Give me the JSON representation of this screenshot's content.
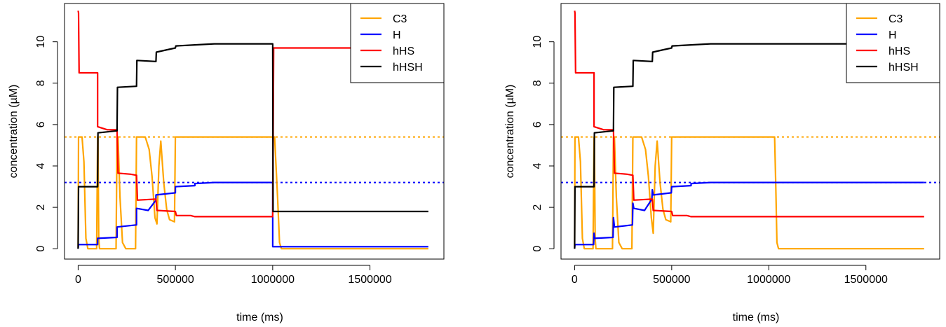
{
  "chart_data": [
    {
      "type": "line",
      "xlabel": "time (ms)",
      "ylabel": "concentration (µM)",
      "xlim": [
        -70000,
        1880000
      ],
      "ylim": [
        -0.5,
        11.85
      ],
      "xticks": [
        0,
        500000,
        1000000,
        1500000
      ],
      "xtick_labels": [
        "0",
        "500000",
        "1000000",
        "1500000"
      ],
      "yticks": [
        0,
        2,
        4,
        6,
        8,
        10
      ],
      "ytick_labels": [
        "0",
        "2",
        "4",
        "6",
        "8",
        "10"
      ],
      "legend_position": "top-right",
      "reference_lines": [
        {
          "series": "C3",
          "y": 5.4,
          "style": "dotted",
          "color": "#FFA500"
        },
        {
          "series": "H",
          "y": 3.2,
          "style": "dotted",
          "color": "#0000FF"
        }
      ],
      "series": [
        {
          "name": "C3",
          "color": "#FFA500",
          "points": [
            [
              0,
              0
            ],
            [
              2000,
              5.4
            ],
            [
              20000,
              5.4
            ],
            [
              30000,
              4.2
            ],
            [
              40000,
              0.5
            ],
            [
              50000,
              0
            ],
            [
              95000,
              0
            ],
            [
              100000,
              5.4
            ],
            [
              102000,
              5.4
            ],
            [
              106000,
              0.5
            ],
            [
              110000,
              0
            ],
            [
              195000,
              0
            ],
            [
              200000,
              5.4
            ],
            [
              205000,
              5.4
            ],
            [
              215000,
              2.5
            ],
            [
              228000,
              0.3
            ],
            [
              245000,
              0
            ],
            [
              295000,
              0
            ],
            [
              300000,
              5.4
            ],
            [
              345000,
              5.4
            ],
            [
              365000,
              4.8
            ],
            [
              380000,
              3.5
            ],
            [
              395000,
              1.5
            ],
            [
              405000,
              1.2
            ],
            [
              415000,
              4.0
            ],
            [
              425000,
              5.2
            ],
            [
              440000,
              3.2
            ],
            [
              455000,
              1.9
            ],
            [
              470000,
              1.4
            ],
            [
              495000,
              1.3
            ],
            [
              500000,
              5.4
            ],
            [
              1000000,
              5.4
            ],
            [
              1010000,
              5.4
            ],
            [
              1025000,
              2.5
            ],
            [
              1035000,
              0.3
            ],
            [
              1045000,
              0
            ],
            [
              1800000,
              0
            ]
          ]
        },
        {
          "name": "H",
          "color": "#0000FF",
          "points": [
            [
              0,
              0
            ],
            [
              2000,
              0.2
            ],
            [
              100000,
              0.2
            ],
            [
              100000,
              0.5
            ],
            [
              200000,
              0.55
            ],
            [
              200000,
              1.05
            ],
            [
              300000,
              1.15
            ],
            [
              300000,
              1.95
            ],
            [
              360000,
              1.85
            ],
            [
              400000,
              2.35
            ],
            [
              400000,
              2.6
            ],
            [
              500000,
              2.7
            ],
            [
              500000,
              3.0
            ],
            [
              600000,
              3.05
            ],
            [
              600000,
              3.15
            ],
            [
              700000,
              3.2
            ],
            [
              1000000,
              3.2
            ],
            [
              1000000,
              0.1
            ],
            [
              1800000,
              0.1
            ]
          ]
        },
        {
          "name": "hHS",
          "color": "#FF0000",
          "points": [
            [
              0,
              11.5
            ],
            [
              2000,
              11.4
            ],
            [
              5000,
              8.5
            ],
            [
              100000,
              8.5
            ],
            [
              100000,
              5.9
            ],
            [
              150000,
              5.75
            ],
            [
              200000,
              5.75
            ],
            [
              205000,
              3.65
            ],
            [
              270000,
              3.6
            ],
            [
              300000,
              3.55
            ],
            [
              305000,
              2.35
            ],
            [
              400000,
              2.4
            ],
            [
              405000,
              1.85
            ],
            [
              500000,
              1.8
            ],
            [
              505000,
              1.6
            ],
            [
              580000,
              1.6
            ],
            [
              600000,
              1.55
            ],
            [
              1000000,
              1.55
            ],
            [
              1005000,
              9.7
            ],
            [
              1800000,
              9.7
            ]
          ]
        },
        {
          "name": "hHSH",
          "color": "#000000",
          "points": [
            [
              0,
              0
            ],
            [
              2000,
              3.0
            ],
            [
              100000,
              3.0
            ],
            [
              102000,
              5.6
            ],
            [
              200000,
              5.7
            ],
            [
              202000,
              7.8
            ],
            [
              300000,
              7.85
            ],
            [
              302000,
              9.1
            ],
            [
              400000,
              9.05
            ],
            [
              402000,
              9.5
            ],
            [
              450000,
              9.6
            ],
            [
              500000,
              9.7
            ],
            [
              502000,
              9.8
            ],
            [
              600000,
              9.85
            ],
            [
              700000,
              9.9
            ],
            [
              1000000,
              9.9
            ],
            [
              1002000,
              1.8
            ],
            [
              1800000,
              1.8
            ]
          ]
        }
      ]
    },
    {
      "type": "line",
      "xlabel": "time (ms)",
      "ylabel": "concentration (µM)",
      "xlim": [
        -70000,
        1880000
      ],
      "ylim": [
        -0.5,
        11.85
      ],
      "xticks": [
        0,
        500000,
        1000000,
        1500000
      ],
      "xtick_labels": [
        "0",
        "500000",
        "1000000",
        "1500000"
      ],
      "yticks": [
        0,
        2,
        4,
        6,
        8,
        10
      ],
      "ytick_labels": [
        "0",
        "2",
        "4",
        "6",
        "8",
        "10"
      ],
      "legend_position": "top-right",
      "reference_lines": [
        {
          "series": "C3",
          "y": 5.4,
          "style": "dotted",
          "color": "#FFA500"
        },
        {
          "series": "H",
          "y": 3.2,
          "style": "dotted",
          "color": "#0000FF"
        }
      ],
      "series": [
        {
          "name": "C3",
          "color": "#FFA500",
          "points": [
            [
              0,
              0
            ],
            [
              2000,
              5.4
            ],
            [
              20000,
              5.4
            ],
            [
              30000,
              4.2
            ],
            [
              40000,
              0.5
            ],
            [
              50000,
              0
            ],
            [
              95000,
              0
            ],
            [
              100000,
              5.4
            ],
            [
              102000,
              5.4
            ],
            [
              106000,
              0.5
            ],
            [
              110000,
              0
            ],
            [
              195000,
              0
            ],
            [
              200000,
              5.4
            ],
            [
              205000,
              5.4
            ],
            [
              215000,
              2.5
            ],
            [
              228000,
              0.3
            ],
            [
              245000,
              0
            ],
            [
              295000,
              0
            ],
            [
              300000,
              5.4
            ],
            [
              345000,
              5.4
            ],
            [
              365000,
              4.8
            ],
            [
              380000,
              3.5
            ],
            [
              395000,
              1.5
            ],
            [
              405000,
              0.75
            ],
            [
              415000,
              4.0
            ],
            [
              425000,
              5.2
            ],
            [
              440000,
              3.2
            ],
            [
              455000,
              1.9
            ],
            [
              470000,
              1.4
            ],
            [
              495000,
              1.3
            ],
            [
              500000,
              5.4
            ],
            [
              1030000,
              5.4
            ],
            [
              1036000,
              3.0
            ],
            [
              1042000,
              0.3
            ],
            [
              1050000,
              0
            ],
            [
              1800000,
              0
            ]
          ]
        },
        {
          "name": "H",
          "color": "#0000FF",
          "points": [
            [
              0,
              0
            ],
            [
              2000,
              0.2
            ],
            [
              98000,
              0.2
            ],
            [
              100000,
              0.75
            ],
            [
              103000,
              0.5
            ],
            [
              198000,
              0.55
            ],
            [
              200000,
              1.5
            ],
            [
              205000,
              1.05
            ],
            [
              298000,
              1.15
            ],
            [
              300000,
              2.2
            ],
            [
              305000,
              1.95
            ],
            [
              360000,
              1.85
            ],
            [
              398000,
              2.4
            ],
            [
              400000,
              2.85
            ],
            [
              405000,
              2.6
            ],
            [
              498000,
              2.7
            ],
            [
              500000,
              3.0
            ],
            [
              600000,
              3.05
            ],
            [
              600000,
              3.15
            ],
            [
              700000,
              3.2
            ],
            [
              1800000,
              3.2
            ]
          ]
        },
        {
          "name": "hHS",
          "color": "#FF0000",
          "points": [
            [
              0,
              11.5
            ],
            [
              2000,
              11.4
            ],
            [
              5000,
              8.5
            ],
            [
              100000,
              8.5
            ],
            [
              100000,
              5.9
            ],
            [
              150000,
              5.75
            ],
            [
              200000,
              5.75
            ],
            [
              205000,
              3.65
            ],
            [
              270000,
              3.6
            ],
            [
              300000,
              3.55
            ],
            [
              305000,
              2.35
            ],
            [
              400000,
              2.4
            ],
            [
              405000,
              1.85
            ],
            [
              500000,
              1.8
            ],
            [
              505000,
              1.6
            ],
            [
              580000,
              1.6
            ],
            [
              600000,
              1.55
            ],
            [
              1800000,
              1.55
            ]
          ]
        },
        {
          "name": "hHSH",
          "color": "#000000",
          "points": [
            [
              0,
              0
            ],
            [
              2000,
              3.0
            ],
            [
              100000,
              3.0
            ],
            [
              102000,
              5.6
            ],
            [
              200000,
              5.7
            ],
            [
              202000,
              7.8
            ],
            [
              300000,
              7.85
            ],
            [
              302000,
              9.1
            ],
            [
              400000,
              9.05
            ],
            [
              402000,
              9.5
            ],
            [
              450000,
              9.6
            ],
            [
              500000,
              9.7
            ],
            [
              502000,
              9.8
            ],
            [
              600000,
              9.85
            ],
            [
              700000,
              9.9
            ],
            [
              1800000,
              9.9
            ]
          ]
        }
      ]
    }
  ]
}
